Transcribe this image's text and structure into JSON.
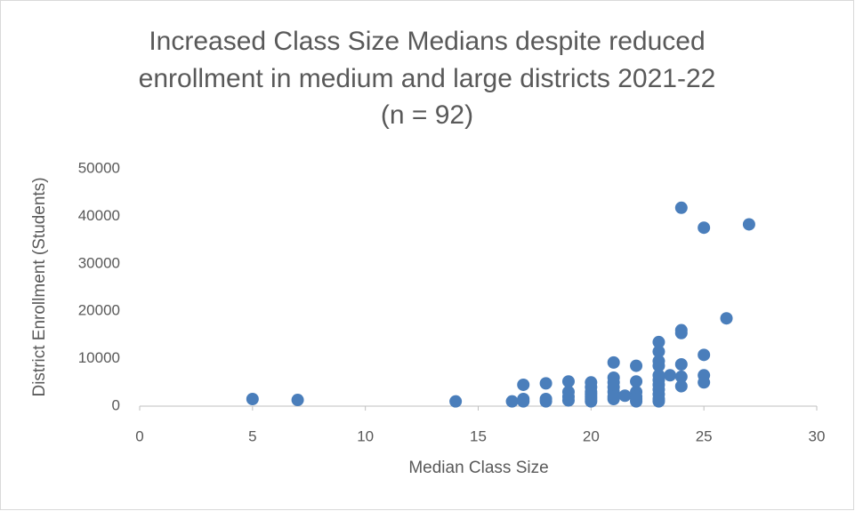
{
  "chart_data": {
    "type": "scatter",
    "title": [
      "Increased Class Size Medians despite reduced",
      "enrollment in medium and large districts 2021-22",
      "(n = 92)"
    ],
    "x_label": "Median Class Size",
    "y_label": "District Enrollment (Students)",
    "color": "#4a7ebb",
    "x": [
      5,
      7,
      14,
      16.5,
      17,
      17,
      17,
      18,
      18,
      18,
      19,
      19,
      19,
      19,
      20,
      20,
      20,
      20,
      20,
      20,
      20,
      21,
      21,
      21,
      21,
      21,
      21,
      21,
      21.5,
      22,
      22,
      22,
      22,
      22,
      22,
      23,
      23,
      23,
      23,
      23,
      23,
      23,
      23,
      23,
      23,
      23,
      23.5,
      24,
      24,
      24,
      24,
      24,
      24,
      25,
      25,
      25,
      25,
      26,
      27
    ],
    "values": [
      1500,
      1300,
      1000,
      1000,
      4500,
      1500,
      1000,
      4800,
      1500,
      1000,
      5200,
      3000,
      2000,
      1200,
      5000,
      4000,
      3000,
      2500,
      2000,
      1500,
      1000,
      9200,
      6000,
      5000,
      4000,
      3000,
      2000,
      1500,
      2200,
      8500,
      5200,
      3000,
      2000,
      1500,
      1000,
      13500,
      11500,
      9500,
      8500,
      6500,
      5500,
      4500,
      3500,
      2500,
      1500,
      1000,
      6500,
      41800,
      16000,
      15400,
      8800,
      6200,
      4200,
      37600,
      10800,
      6500,
      5000,
      18500,
      38300
    ],
    "xlim": [
      0,
      30
    ],
    "xticks": [
      0,
      5,
      10,
      15,
      20,
      25,
      30
    ],
    "ylim": [
      0,
      50000
    ],
    "yticks": [
      0,
      10000,
      20000,
      30000,
      40000,
      50000
    ],
    "grid": false
  }
}
